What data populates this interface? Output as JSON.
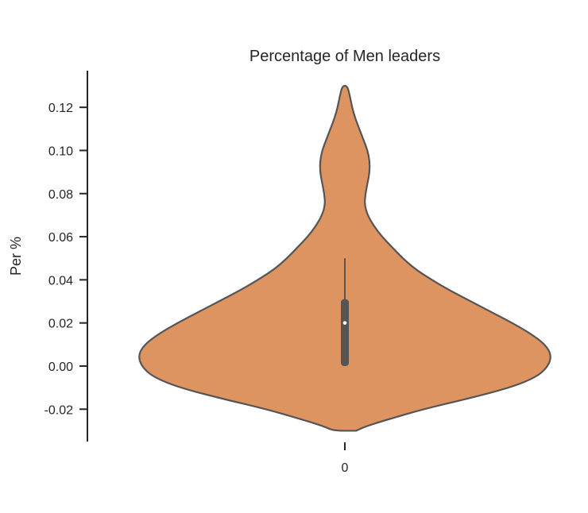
{
  "chart_data": {
    "type": "violin",
    "title": "Percentage of Men leaders",
    "xlabel": "",
    "ylabel": "Per %",
    "categories": [
      "0"
    ],
    "y_ticks": [
      -0.02,
      0.0,
      0.02,
      0.04,
      0.06,
      0.08,
      0.1,
      0.12
    ],
    "y_tick_labels": [
      "-0.02",
      "0.00",
      "0.02",
      "0.04",
      "0.06",
      "0.08",
      "0.10",
      "0.12"
    ],
    "ylim": [
      -0.035,
      0.137
    ],
    "grid": false,
    "colors": {
      "violin_fill": "#dd9460",
      "violin_edge": "#555555",
      "box": "#555555",
      "median": "#ffffff",
      "axis": "#262626"
    },
    "summary": {
      "min": 0.0,
      "q1": 0.0,
      "median": 0.02,
      "q3": 0.031,
      "whisker_high": 0.05,
      "kde_low": -0.03,
      "kde_high": 0.13
    },
    "density_profile": [
      {
        "y": -0.03,
        "half_width": 0.055
      },
      {
        "y": -0.028,
        "half_width": 0.1
      },
      {
        "y": -0.025,
        "half_width": 0.2
      },
      {
        "y": -0.02,
        "half_width": 0.38
      },
      {
        "y": -0.015,
        "half_width": 0.6
      },
      {
        "y": -0.01,
        "half_width": 0.8
      },
      {
        "y": -0.005,
        "half_width": 0.93
      },
      {
        "y": 0.0,
        "half_width": 0.985
      },
      {
        "y": 0.005,
        "half_width": 1.0
      },
      {
        "y": 0.01,
        "half_width": 0.97
      },
      {
        "y": 0.015,
        "half_width": 0.9
      },
      {
        "y": 0.02,
        "half_width": 0.81
      },
      {
        "y": 0.025,
        "half_width": 0.71
      },
      {
        "y": 0.03,
        "half_width": 0.61
      },
      {
        "y": 0.035,
        "half_width": 0.51
      },
      {
        "y": 0.04,
        "half_width": 0.42
      },
      {
        "y": 0.045,
        "half_width": 0.34
      },
      {
        "y": 0.05,
        "half_width": 0.28
      },
      {
        "y": 0.055,
        "half_width": 0.23
      },
      {
        "y": 0.06,
        "half_width": 0.18
      },
      {
        "y": 0.065,
        "half_width": 0.14
      },
      {
        "y": 0.07,
        "half_width": 0.11
      },
      {
        "y": 0.075,
        "half_width": 0.095
      },
      {
        "y": 0.08,
        "half_width": 0.1
      },
      {
        "y": 0.085,
        "half_width": 0.11
      },
      {
        "y": 0.09,
        "half_width": 0.12
      },
      {
        "y": 0.095,
        "half_width": 0.12
      },
      {
        "y": 0.1,
        "half_width": 0.11
      },
      {
        "y": 0.105,
        "half_width": 0.09
      },
      {
        "y": 0.11,
        "half_width": 0.07
      },
      {
        "y": 0.115,
        "half_width": 0.05
      },
      {
        "y": 0.12,
        "half_width": 0.035
      },
      {
        "y": 0.125,
        "half_width": 0.025
      },
      {
        "y": 0.13,
        "half_width": 0.012
      }
    ]
  }
}
